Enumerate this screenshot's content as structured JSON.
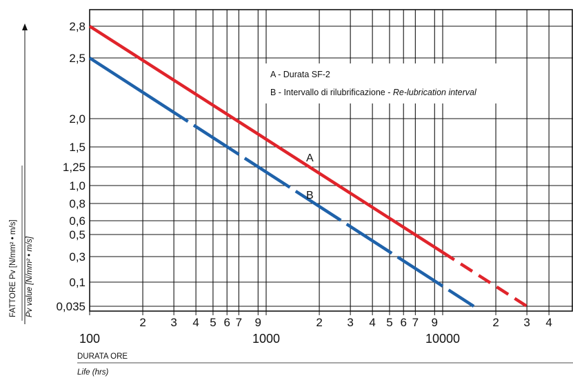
{
  "chart_data": {
    "type": "line",
    "xscale": "log",
    "xlim": [
      100,
      30000
    ],
    "x_major_ticks": [
      100,
      1000,
      10000
    ],
    "x_major_labels": [
      "100",
      "1000",
      "10000"
    ],
    "x_minor_ticks": [
      200,
      300,
      400,
      500,
      600,
      700,
      900,
      2000,
      3000,
      4000,
      5000,
      6000,
      7000,
      9000,
      20000,
      30000,
      40000
    ],
    "x_minor_labels": [
      "2",
      "3",
      "4",
      "5",
      "6",
      "7",
      "9",
      "2",
      "3",
      "4",
      "5",
      "6",
      "7",
      "9",
      "2",
      "3",
      "4"
    ],
    "y_ticks": [
      "2,8",
      "2,5",
      "2,0",
      "1,5",
      "1,25",
      "1,0",
      "0,8",
      "0,6",
      "0,5",
      "0,3",
      "0,1",
      "0,035"
    ],
    "xlabel": "DURATA ORE",
    "xlabel_en": "Life (hrs)",
    "ylabel": "FATTORE Pv [N/mm² • m/s]",
    "ylabel_en": "Pv value [N/mm² • m/s]",
    "legend": [
      {
        "key": "A",
        "text": "A - Durata SF-2"
      },
      {
        "key": "B",
        "text": "B - Intervallo di rilubrificazione - ",
        "text_italic": "Re-lubrication interval"
      }
    ],
    "series": [
      {
        "name": "A",
        "color": "#e0242b",
        "points": [
          {
            "x": 100,
            "y": "2,8"
          },
          {
            "x": 30000,
            "y": "0,035"
          }
        ]
      },
      {
        "name": "B",
        "color": "#1f62aa",
        "points": [
          {
            "x": 100,
            "y": "2,5"
          },
          {
            "x": 15000,
            "y": "0,035"
          }
        ]
      }
    ],
    "grid": true
  }
}
